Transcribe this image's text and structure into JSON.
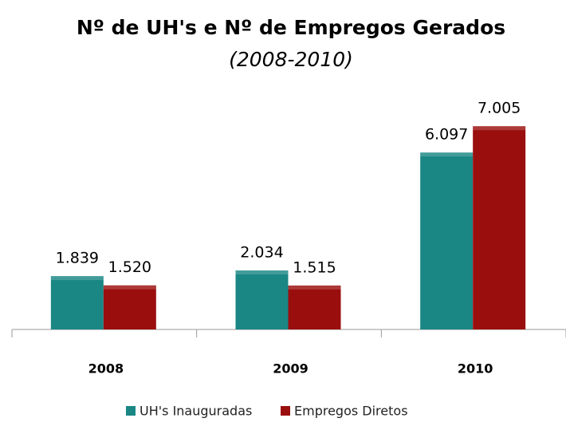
{
  "chart_data": {
    "type": "bar",
    "title": "Nº de UH's e Nº de Empregos Gerados",
    "subtitle": "(2008-2010)",
    "categories": [
      "2008",
      "2009",
      "2010"
    ],
    "series": [
      {
        "name": "UH's Inauguradas",
        "color": "#1a8784",
        "values": [
          1839,
          2034,
          6097
        ],
        "value_labels": [
          "1.839",
          "2.034",
          "6.097"
        ]
      },
      {
        "name": "Empregos Diretos",
        "color": "#9b0e0e",
        "values": [
          1520,
          1515,
          7005
        ],
        "value_labels": [
          "1.520",
          "1.515",
          "7.005"
        ]
      }
    ],
    "ylim": [
      0,
      8000
    ]
  }
}
